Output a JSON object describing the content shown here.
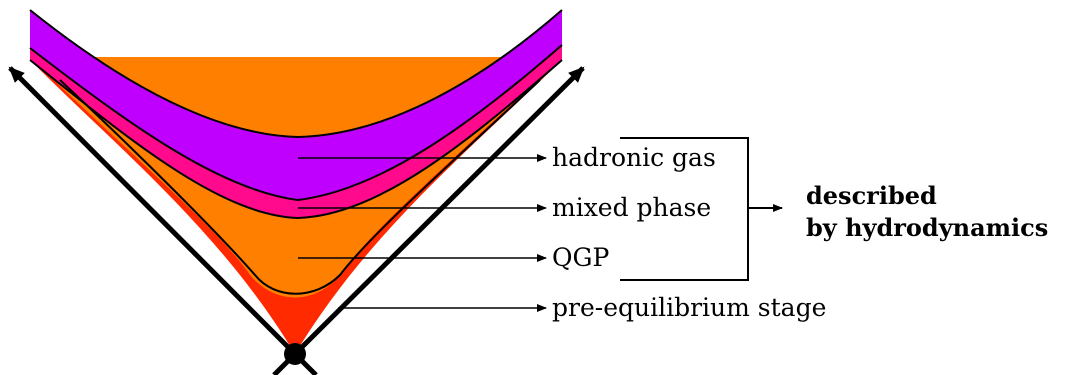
{
  "labels": {
    "hadronic_gas": "hadronic gas",
    "mixed_phase": "mixed phase",
    "qgp": "QGP",
    "pre_equilibrium": "pre-equilibrium stage"
  },
  "summary": {
    "line1": "described",
    "line2": "by hydrodynamics"
  },
  "colors": {
    "hadronic_gas": "#c000ff",
    "mixed_phase": "#ff0a8c",
    "qgp": "#ff7f00",
    "pre_equilibrium": "#ff2a00",
    "lines": "#000000"
  }
}
